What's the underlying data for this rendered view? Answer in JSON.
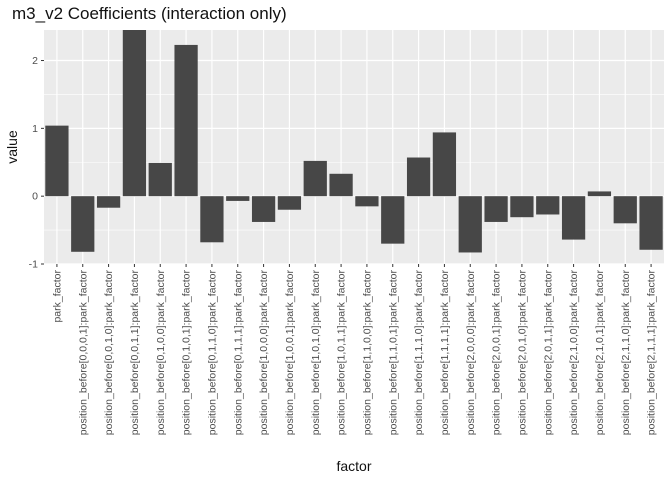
{
  "chart_data": {
    "type": "bar",
    "title": "m3_v2 Coefficients (interaction only)",
    "xlabel": "factor",
    "ylabel": "value",
    "ylim": [
      -1.0,
      2.45
    ],
    "yticks": [
      -1,
      0,
      1,
      2
    ],
    "grid": true,
    "colors": {
      "bar": "#474747",
      "panel": "#ebebeb",
      "grid": "#ffffff"
    },
    "categories": [
      "park_factor",
      "position_before[0,0,0,1]:park_factor",
      "position_before[0,0,1,0]:park_factor",
      "position_before[0,0,1,1]:park_factor",
      "position_before[0,1,0,0]:park_factor",
      "position_before[0,1,0,1]:park_factor",
      "position_before[0,1,1,0]:park_factor",
      "position_before[0,1,1,1]:park_factor",
      "position_before[1,0,0,0]:park_factor",
      "position_before[1,0,0,1]:park_factor",
      "position_before[1,0,1,0]:park_factor",
      "position_before[1,0,1,1]:park_factor",
      "position_before[1,1,0,0]:park_factor",
      "position_before[1,1,0,1]:park_factor",
      "position_before[1,1,1,0]:park_factor",
      "position_before[1,1,1,1]:park_factor",
      "position_before[2,0,0,0]:park_factor",
      "position_before[2,0,0,1]:park_factor",
      "position_before[2,0,1,0]:park_factor",
      "position_before[2,0,1,1]:park_factor",
      "position_before[2,1,0,0]:park_factor",
      "position_before[2,1,0,1]:park_factor",
      "position_before[2,1,1,0]:park_factor",
      "position_before[2,1,1,1]:park_factor"
    ],
    "values": [
      1.04,
      -0.82,
      -0.17,
      2.45,
      0.49,
      2.23,
      -0.68,
      -0.07,
      -0.38,
      -0.2,
      0.52,
      0.33,
      -0.15,
      -0.7,
      0.57,
      0.94,
      -0.83,
      -0.38,
      -0.31,
      -0.27,
      -0.64,
      0.07,
      -0.4,
      -0.79
    ]
  }
}
